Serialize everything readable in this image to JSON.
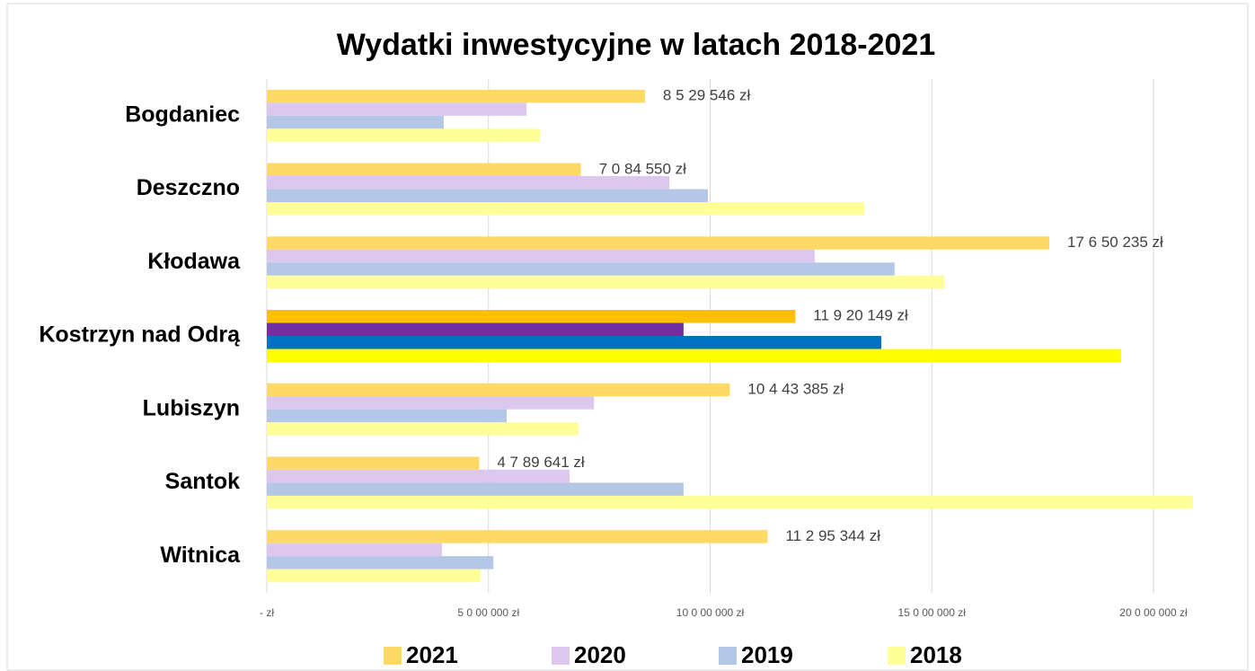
{
  "chart_data": {
    "type": "bar",
    "orientation": "horizontal",
    "title": "Wydatki inwestycyjne w latach 2018-2021",
    "categories": [
      "Bogdaniec",
      "Deszczno",
      "Kłodawa",
      "Kostrzyn nad Odrą",
      "Lubiszyn",
      "Santok",
      "Witnica"
    ],
    "series": [
      {
        "name": "2021",
        "color": "#ffd966",
        "colors": [
          "#ffd966",
          "#ffd966",
          "#ffd966",
          "#ffc000",
          "#ffd966",
          "#ffd966",
          "#ffd966"
        ],
        "values": [
          8529546,
          7084550,
          17650235,
          11920149,
          10443385,
          4789641,
          11295344
        ],
        "value_labels": [
          "8 5 29 546 zł",
          "7 0 84 550 zł",
          "17 6 50 235 zł",
          "11 9 20 149 zł",
          "10 4 43 385 zł",
          "4 7 89 641 zł",
          "11 2 95 344 zł"
        ]
      },
      {
        "name": "2020",
        "color": "#dcc8ee",
        "colors": [
          "#dcc8ee",
          "#dcc8ee",
          "#dcc8ee",
          "#7030a0",
          "#dcc8ee",
          "#dcc8ee",
          "#dcc8ee"
        ],
        "values": [
          5860000,
          9080000,
          12360000,
          9400000,
          7380000,
          6830000,
          3950000
        ]
      },
      {
        "name": "2019",
        "color": "#b4c7e7",
        "colors": [
          "#b4c7e7",
          "#b4c7e7",
          "#b4c7e7",
          "#0070c0",
          "#b4c7e7",
          "#b4c7e7",
          "#b4c7e7"
        ],
        "values": [
          3990000,
          9950000,
          14160000,
          13860000,
          5410000,
          9400000,
          5110000
        ]
      },
      {
        "name": "2018",
        "color": "#ffff99",
        "colors": [
          "#ffff99",
          "#ffff99",
          "#ffff99",
          "#ffff00",
          "#ffff99",
          "#ffff99",
          "#ffff99"
        ],
        "values": [
          6160000,
          13480000,
          15280000,
          19270000,
          7030000,
          20890000,
          4820000
        ]
      }
    ],
    "xlim": [
      0,
      21000000
    ],
    "xticks": [
      {
        "value": 0,
        "label": "-   zł"
      },
      {
        "value": 5000000,
        "label": "5 0 00 000 zł"
      },
      {
        "value": 10000000,
        "label": "10 0 00 000 zł"
      },
      {
        "value": 15000000,
        "label": "15 0 00 000 zł"
      },
      {
        "value": 20000000,
        "label": "20 0 00 000 zł"
      }
    ],
    "grid": true,
    "legend": "bottom"
  }
}
